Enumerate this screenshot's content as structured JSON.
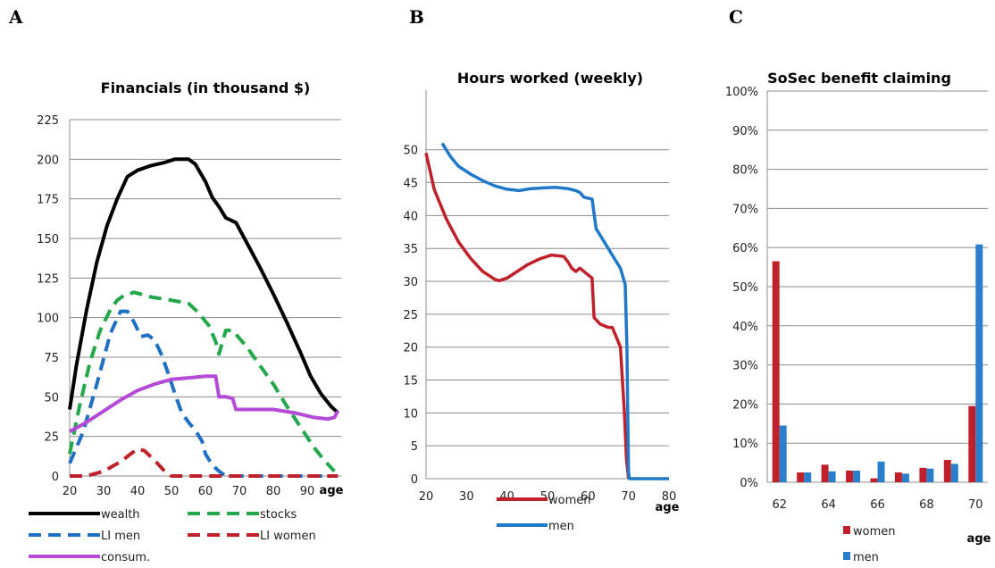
{
  "panels": {
    "A": "A",
    "B": "B",
    "C": "C"
  },
  "chart_data": [
    {
      "type": "line",
      "title": "Financials (in thousand $)",
      "xlabel": "age",
      "ylabel": "",
      "xlim": [
        20,
        100
      ],
      "ylim": [
        0,
        225
      ],
      "xticks": [
        "20",
        "30",
        "40",
        "50",
        "60",
        "70",
        "80",
        "90"
      ],
      "yticks": [
        "0",
        "25",
        "50",
        "75",
        "100",
        "125",
        "150",
        "175",
        "200",
        "225"
      ],
      "grid": "horizontal",
      "legend_position": "bottom",
      "series": [
        {
          "name": "wealth",
          "color": "#000000",
          "style": "solid",
          "points": [
            [
              20,
              42
            ],
            [
              22,
              70
            ],
            [
              25,
              105
            ],
            [
              28,
              135
            ],
            [
              31,
              158
            ],
            [
              34,
              175
            ],
            [
              37,
              189
            ],
            [
              40,
              193
            ],
            [
              44,
              196
            ],
            [
              48,
              198
            ],
            [
              51,
              200
            ],
            [
              55,
              200
            ],
            [
              57,
              197
            ],
            [
              60,
              186
            ],
            [
              62,
              176
            ],
            [
              64,
              170
            ],
            [
              66,
              163
            ],
            [
              69,
              160
            ],
            [
              72,
              148
            ],
            [
              76,
              132
            ],
            [
              80,
              115
            ],
            [
              84,
              97
            ],
            [
              88,
              78
            ],
            [
              91,
              63
            ],
            [
              94,
              52
            ],
            [
              97,
              44
            ],
            [
              99,
              40
            ]
          ]
        },
        {
          "name": "stocks",
          "color": "#22a84a",
          "style": "dashed",
          "points": [
            [
              20,
              14
            ],
            [
              23,
              45
            ],
            [
              26,
              72
            ],
            [
              29,
              92
            ],
            [
              32,
              105
            ],
            [
              34,
              111
            ],
            [
              36,
              114
            ],
            [
              39,
              116
            ],
            [
              44,
              113
            ],
            [
              50,
              111
            ],
            [
              55,
              109
            ],
            [
              58,
              103
            ],
            [
              61,
              95
            ],
            [
              63,
              85
            ],
            [
              64,
              77
            ],
            [
              66,
              92
            ],
            [
              68,
              92
            ],
            [
              72,
              82
            ],
            [
              76,
              70
            ],
            [
              80,
              58
            ],
            [
              84,
              44
            ],
            [
              88,
              31
            ],
            [
              92,
              18
            ],
            [
              95,
              10
            ],
            [
              98,
              3
            ]
          ]
        },
        {
          "name": "LI men",
          "color": "#1f6fc4",
          "style": "dashed",
          "points": [
            [
              20,
              8
            ],
            [
              24,
              28
            ],
            [
              28,
              58
            ],
            [
              32,
              90
            ],
            [
              35,
              104
            ],
            [
              37,
              104
            ],
            [
              39,
              97
            ],
            [
              41,
              88
            ],
            [
              43,
              89
            ],
            [
              45,
              86
            ],
            [
              47,
              77
            ],
            [
              49,
              65
            ],
            [
              51,
              52
            ],
            [
              53,
              40
            ],
            [
              55,
              34
            ],
            [
              57,
              29
            ],
            [
              59,
              22
            ],
            [
              60,
              14
            ],
            [
              62,
              7
            ],
            [
              64,
              3
            ],
            [
              66,
              0
            ],
            [
              69,
              0
            ],
            [
              80,
              0
            ],
            [
              99,
              0
            ]
          ]
        },
        {
          "name": "LI women",
          "color": "#c0202a",
          "style": "dashed",
          "points": [
            [
              20,
              0
            ],
            [
              25,
              0
            ],
            [
              30,
              3
            ],
            [
              35,
              9
            ],
            [
              38,
              14
            ],
            [
              40,
              17
            ],
            [
              42,
              16
            ],
            [
              45,
              10
            ],
            [
              48,
              3
            ],
            [
              50,
              0
            ],
            [
              60,
              0
            ],
            [
              80,
              0
            ],
            [
              99,
              0
            ]
          ]
        },
        {
          "name": "consum.",
          "color": "#b44ad6",
          "style": "solid",
          "points": [
            [
              20,
              28
            ],
            [
              25,
              34
            ],
            [
              30,
              41
            ],
            [
              35,
              48
            ],
            [
              40,
              54
            ],
            [
              45,
              58
            ],
            [
              50,
              61
            ],
            [
              55,
              62
            ],
            [
              60,
              63
            ],
            [
              63,
              63
            ],
            [
              64,
              50
            ],
            [
              66,
              50
            ],
            [
              68,
              49
            ],
            [
              69,
              42
            ],
            [
              75,
              42
            ],
            [
              80,
              42
            ],
            [
              86,
              40
            ],
            [
              92,
              37
            ],
            [
              96,
              36
            ],
            [
              98,
              37
            ],
            [
              99,
              41
            ]
          ]
        }
      ]
    },
    {
      "type": "line",
      "title": "Hours worked (weekly)",
      "xlabel": "age",
      "ylabel": "",
      "xlim": [
        20,
        80
      ],
      "ylim": [
        0,
        52
      ],
      "xticks": [
        "20",
        "30",
        "40",
        "50",
        "60",
        "70",
        "80"
      ],
      "yticks": [
        "0",
        "5",
        "10",
        "15",
        "20",
        "25",
        "30",
        "35",
        "40",
        "45",
        "50"
      ],
      "grid": "horizontal",
      "legend_position": "bottom",
      "series": [
        {
          "name": "women",
          "color": "#c0202a",
          "style": "solid",
          "points": [
            [
              20,
              49.5
            ],
            [
              22,
              44
            ],
            [
              25,
              39.5
            ],
            [
              28,
              36
            ],
            [
              31,
              33.5
            ],
            [
              34,
              31.5
            ],
            [
              37,
              30.3
            ],
            [
              38,
              30.1
            ],
            [
              40,
              30.5
            ],
            [
              42,
              31.3
            ],
            [
              45,
              32.5
            ],
            [
              48,
              33.4
            ],
            [
              51,
              34
            ],
            [
              54,
              33.8
            ],
            [
              55,
              33
            ],
            [
              56,
              32
            ],
            [
              57,
              31.5
            ],
            [
              58,
              32
            ],
            [
              60,
              31
            ],
            [
              61,
              30.5
            ],
            [
              61.5,
              24.5
            ],
            [
              63,
              23.5
            ],
            [
              65,
              23
            ],
            [
              66,
              23
            ],
            [
              67,
              21.5
            ],
            [
              68,
              20
            ],
            [
              69,
              10
            ],
            [
              69.5,
              3
            ],
            [
              70,
              0
            ]
          ]
        },
        {
          "name": "men",
          "color": "#1f78c8",
          "style": "solid",
          "points": [
            [
              24,
              51
            ],
            [
              26,
              49
            ],
            [
              28,
              47.5
            ],
            [
              31,
              46.3
            ],
            [
              34,
              45.3
            ],
            [
              37,
              44.5
            ],
            [
              40,
              44
            ],
            [
              43,
              43.8
            ],
            [
              46,
              44.1
            ],
            [
              49,
              44.2
            ],
            [
              52,
              44.3
            ],
            [
              55,
              44.1
            ],
            [
              57,
              43.8
            ],
            [
              58,
              43.5
            ],
            [
              59,
              42.8
            ],
            [
              61,
              42.5
            ],
            [
              62,
              38
            ],
            [
              64,
              36
            ],
            [
              66,
              34
            ],
            [
              68,
              32
            ],
            [
              69.2,
              29.5
            ],
            [
              69.6,
              20
            ],
            [
              70,
              1
            ],
            [
              70.2,
              0
            ],
            [
              80,
              0
            ]
          ]
        }
      ]
    },
    {
      "type": "bar",
      "title": "SoSec benefit claiming",
      "xlabel": "age",
      "ylabel": "",
      "categories": [
        "62",
        "63",
        "64",
        "65",
        "66",
        "67",
        "68",
        "69",
        "70"
      ],
      "xticks": [
        "62",
        "64",
        "66",
        "68",
        "70"
      ],
      "yticks": [
        "0%",
        "10%",
        "20%",
        "30%",
        "40%",
        "50%",
        "60%",
        "70%",
        "80%",
        "90%",
        "100%"
      ],
      "ylim": [
        0,
        100
      ],
      "grid": "horizontal",
      "legend_position": "bottom",
      "series": [
        {
          "name": "women",
          "color": "#c0202a",
          "values": [
            56.5,
            2.5,
            4.5,
            3,
            1,
            2.5,
            3.7,
            5.7,
            19.5
          ]
        },
        {
          "name": "men",
          "color": "#2a7fcc",
          "values": [
            14.5,
            2.5,
            2.8,
            3,
            5.3,
            2.2,
            3.5,
            4.7,
            60.8
          ]
        }
      ]
    }
  ]
}
